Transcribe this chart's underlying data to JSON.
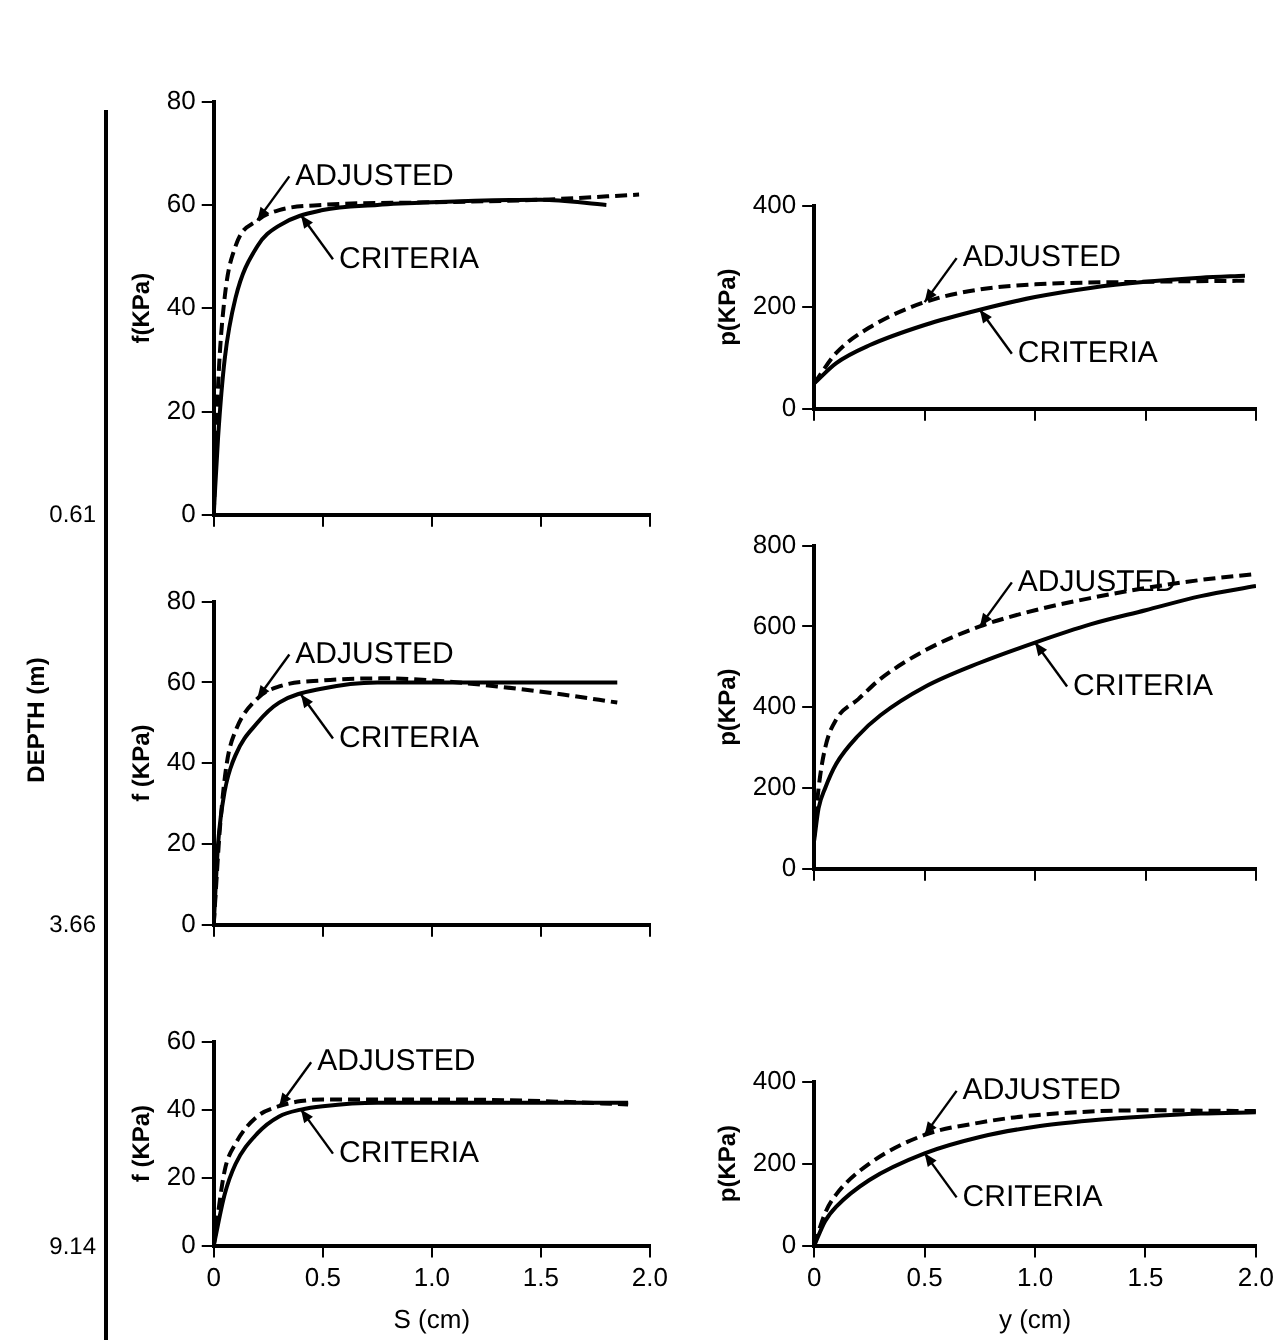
{
  "chart_data": [
    {
      "type": "line",
      "ylabel": "f(KPa)",
      "xlim": [
        0,
        2
      ],
      "xticks": [
        {
          "value": 0,
          "label": null
        },
        {
          "value": 0.5,
          "label": null
        },
        {
          "value": 1,
          "label": null
        },
        {
          "value": 1.5,
          "label": null
        },
        {
          "value": 2,
          "label": null
        }
      ],
      "ylim": [
        0,
        80
      ],
      "yticks": [
        0,
        20,
        40,
        60,
        80
      ],
      "tick_labels": "y",
      "grid": false,
      "legend": false,
      "marker": "none",
      "series": [
        {
          "color": "#000000",
          "line_style": "dashed",
          "x": [
            0,
            0.02,
            0.05,
            0.1,
            0.2,
            0.3,
            0.5,
            1.0,
            1.5,
            1.95
          ],
          "values": [
            0,
            25,
            42,
            52,
            57,
            59,
            60,
            60.5,
            61,
            62
          ]
        },
        {
          "color": "#000000",
          "line_style": "solid",
          "x": [
            0,
            0.02,
            0.05,
            0.1,
            0.2,
            0.3,
            0.5,
            0.75,
            1.0,
            1.5,
            1.8
          ],
          "values": [
            0,
            15,
            30,
            42,
            52,
            56,
            59,
            60,
            60.5,
            61,
            60
          ]
        }
      ],
      "annotations": [
        {
          "text": "ADJUSTED",
          "x": 0.2,
          "y": 57
        },
        {
          "text": "CRITERIA",
          "x": 0.4,
          "y": 58
        }
      ]
    },
    {
      "type": "line",
      "ylabel": "p(KPa)",
      "xlim": [
        0,
        2
      ],
      "xticks": [
        {
          "value": 0,
          "label": null
        },
        {
          "value": 0.5,
          "label": null
        },
        {
          "value": 1,
          "label": null
        },
        {
          "value": 1.5,
          "label": null
        },
        {
          "value": 2,
          "label": null
        }
      ],
      "ylim": [
        0,
        400
      ],
      "yticks": [
        0,
        200,
        400
      ],
      "tick_labels": "y",
      "grid": false,
      "legend": false,
      "marker": "none",
      "series": [
        {
          "color": "#000000",
          "line_style": "dashed",
          "x": [
            0,
            0.1,
            0.25,
            0.5,
            0.75,
            1.0,
            1.5,
            1.95
          ],
          "values": [
            50,
            110,
            160,
            210,
            235,
            245,
            250,
            252
          ]
        },
        {
          "color": "#000000",
          "line_style": "solid",
          "x": [
            0,
            0.1,
            0.25,
            0.5,
            0.75,
            1.0,
            1.25,
            1.5,
            1.75,
            1.95
          ],
          "values": [
            50,
            90,
            125,
            165,
            195,
            220,
            238,
            250,
            258,
            262
          ]
        }
      ],
      "annotations": [
        {
          "text": "ADJUSTED",
          "x": 0.5,
          "y": 210
        },
        {
          "text": "CRITERIA",
          "x": 0.75,
          "y": 195
        }
      ]
    },
    {
      "type": "line",
      "ylabel": "f (KPa)",
      "xlim": [
        0,
        2
      ],
      "xticks": [
        {
          "value": 0,
          "label": null
        },
        {
          "value": 0.5,
          "label": null
        },
        {
          "value": 1,
          "label": null
        },
        {
          "value": 1.5,
          "label": null
        },
        {
          "value": 2,
          "label": null
        }
      ],
      "ylim": [
        0,
        80
      ],
      "yticks": [
        0,
        20,
        40,
        60,
        80
      ],
      "tick_labels": "y",
      "grid": false,
      "legend": false,
      "marker": "none",
      "series": [
        {
          "color": "#000000",
          "line_style": "dashed",
          "x": [
            0,
            0.03,
            0.06,
            0.1,
            0.2,
            0.3,
            0.5,
            0.8,
            1.0,
            1.3,
            1.6,
            1.85
          ],
          "values": [
            0,
            25,
            40,
            48,
            56,
            59,
            60.5,
            61,
            60.5,
            59,
            57,
            55
          ]
        },
        {
          "color": "#000000",
          "line_style": "solid",
          "x": [
            0,
            0.02,
            0.05,
            0.1,
            0.2,
            0.3,
            0.5,
            0.75,
            1.0,
            1.5,
            1.85
          ],
          "values": [
            0,
            20,
            33,
            42,
            50,
            55,
            58.5,
            60,
            60,
            60,
            60
          ]
        }
      ],
      "annotations": [
        {
          "text": "ADJUSTED",
          "x": 0.2,
          "y": 56
        },
        {
          "text": "CRITERIA",
          "x": 0.4,
          "y": 57
        }
      ]
    },
    {
      "type": "line",
      "ylabel": "p(KPa)",
      "xlim": [
        0,
        2
      ],
      "xticks": [
        {
          "value": 0,
          "label": null
        },
        {
          "value": 0.5,
          "label": null
        },
        {
          "value": 1,
          "label": null
        },
        {
          "value": 1.5,
          "label": null
        },
        {
          "value": 2,
          "label": null
        }
      ],
      "ylim": [
        0,
        800
      ],
      "yticks": [
        0,
        200,
        400,
        600,
        800
      ],
      "tick_labels": "y",
      "grid": false,
      "legend": false,
      "marker": "none",
      "series": [
        {
          "color": "#000000",
          "line_style": "dashed",
          "x": [
            0,
            0.02,
            0.05,
            0.1,
            0.2,
            0.3,
            0.5,
            0.75,
            1.0,
            1.25,
            1.5,
            1.75,
            2.0
          ],
          "values": [
            80,
            200,
            300,
            370,
            420,
            470,
            540,
            600,
            640,
            670,
            695,
            715,
            730
          ]
        },
        {
          "color": "#000000",
          "line_style": "solid",
          "x": [
            0,
            0.02,
            0.05,
            0.1,
            0.2,
            0.3,
            0.5,
            0.75,
            1.0,
            1.25,
            1.5,
            1.75,
            2.0
          ],
          "values": [
            70,
            150,
            200,
            260,
            330,
            380,
            450,
            510,
            560,
            605,
            640,
            675,
            700
          ]
        }
      ],
      "annotations": [
        {
          "text": "ADJUSTED",
          "x": 0.75,
          "y": 600
        },
        {
          "text": "CRITERIA",
          "x": 1.0,
          "y": 560
        }
      ]
    },
    {
      "type": "line",
      "ylabel": "f (KPa)",
      "xlabel": "S (cm)",
      "xlim": [
        0,
        2
      ],
      "xticks": [
        0,
        0.5,
        {
          "value": 1,
          "label": "1.0"
        },
        1.5,
        {
          "value": 2,
          "label": "2.0"
        }
      ],
      "ylim": [
        0,
        60
      ],
      "yticks": [
        0,
        20,
        40,
        60
      ],
      "grid": false,
      "legend": false,
      "marker": "none",
      "series": [
        {
          "color": "#000000",
          "line_style": "dashed",
          "x": [
            0,
            0.05,
            0.1,
            0.2,
            0.3,
            0.4,
            0.5,
            1.0,
            1.5,
            1.9
          ],
          "values": [
            0,
            22,
            30,
            38,
            41,
            42.5,
            43,
            43,
            42.5,
            41.5
          ]
        },
        {
          "color": "#000000",
          "line_style": "solid",
          "x": [
            0,
            0.05,
            0.1,
            0.2,
            0.3,
            0.4,
            0.5,
            0.75,
            1.0,
            1.5,
            1.9
          ],
          "values": [
            0,
            15,
            24,
            33,
            38,
            40,
            41,
            42,
            42,
            42,
            42
          ]
        }
      ],
      "annotations": [
        {
          "text": "ADJUSTED",
          "x": 0.3,
          "y": 41
        },
        {
          "text": "CRITERIA",
          "x": 0.4,
          "y": 40
        }
      ]
    },
    {
      "type": "line",
      "ylabel": "p(KPa)",
      "xlabel": "y (cm)",
      "xlim": [
        0,
        2
      ],
      "xticks": [
        0,
        0.5,
        {
          "value": 1,
          "label": "1.0"
        },
        1.5,
        {
          "value": 2,
          "label": "2.0"
        }
      ],
      "ylim": [
        0,
        400
      ],
      "yticks": [
        0,
        200,
        400
      ],
      "grid": false,
      "legend": false,
      "marker": "none",
      "series": [
        {
          "color": "#000000",
          "line_style": "dashed",
          "x": [
            0,
            0.05,
            0.1,
            0.25,
            0.5,
            0.75,
            1.0,
            1.5,
            2.0
          ],
          "values": [
            0,
            80,
            125,
            200,
            270,
            300,
            318,
            330,
            328
          ]
        },
        {
          "color": "#000000",
          "line_style": "solid",
          "x": [
            0,
            0.05,
            0.1,
            0.25,
            0.5,
            0.75,
            1.0,
            1.25,
            1.5,
            1.75,
            2.0
          ],
          "values": [
            0,
            60,
            95,
            160,
            225,
            265,
            290,
            305,
            315,
            322,
            325
          ]
        }
      ],
      "annotations": [
        {
          "text": "ADJUSTED",
          "x": 0.5,
          "y": 270
        },
        {
          "text": "CRITERIA",
          "x": 0.5,
          "y": 225
        }
      ]
    },
    {
      "type": "other",
      "ylabel": "DEPTH (m)",
      "annotations": [
        "0.61",
        "3.66",
        "9.14"
      ]
    }
  ]
}
